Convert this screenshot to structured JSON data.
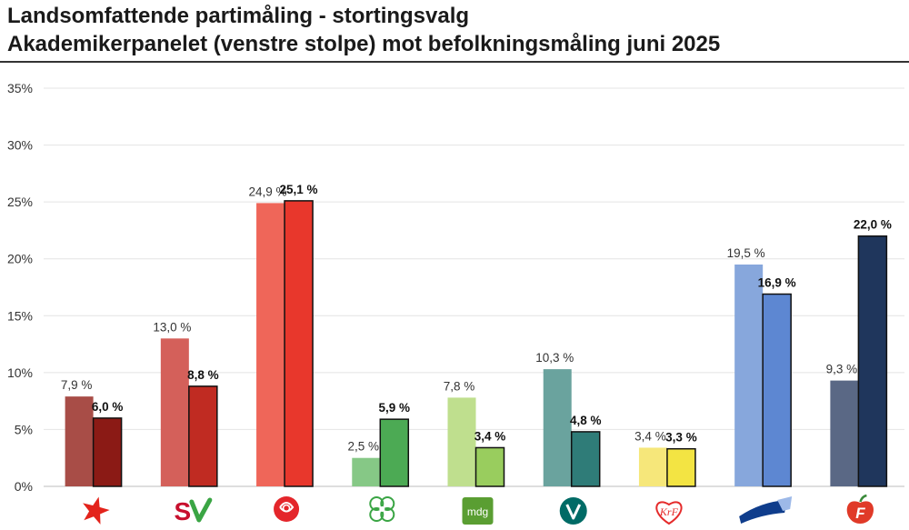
{
  "title": {
    "line1": "Landsomfattende partimåling - stortingsvalg",
    "line2": "Akademikerpanelet (venstre stolpe) mot befolkningsmåling juni 2025"
  },
  "chart_data": {
    "type": "bar",
    "ylim": [
      0,
      35
    ],
    "yticks": [
      "0%",
      "5%",
      "10%",
      "15%",
      "20%",
      "25%",
      "30%",
      "35%"
    ],
    "grid": true,
    "legend": "none",
    "categories": [
      "Rødt",
      "SV",
      "Ap",
      "Sp",
      "MDG",
      "Venstre",
      "KrF",
      "Høyre",
      "FrP"
    ],
    "series": [
      {
        "values": [
          7.9,
          13.0,
          24.9,
          2.5,
          7.8,
          10.3,
          3.4,
          19.5,
          9.3
        ],
        "labels": [
          "7,9 %",
          "13,0 %",
          "24,9 %",
          "2,5 %",
          "7,8 %",
          "10,3 %",
          "3,4 %",
          "19,5 %",
          "9,3 %"
        ],
        "colors": [
          "#a84d47",
          "#d4605a",
          "#ef6659",
          "#86c886",
          "#bfdf8e",
          "#6aa39e",
          "#f6e77a",
          "#87a7dc",
          "#5a6885"
        ]
      },
      {
        "values": [
          6.0,
          8.8,
          25.1,
          5.9,
          3.4,
          4.8,
          3.3,
          16.9,
          22.0
        ],
        "labels": [
          "6,0 %",
          "8,8 %",
          "25,1 %",
          "5,9 %",
          "3,4 %",
          "4,8 %",
          "3,3 %",
          "16,9 %",
          "22,0 %"
        ],
        "colors": [
          "#8b1a15",
          "#c02b22",
          "#e8372c",
          "#4caa54",
          "#99cd5e",
          "#2f7c78",
          "#f3e443",
          "#5d87d2",
          "#1f365c"
        ]
      }
    ],
    "logos": [
      {
        "name": "rodt-star-logo",
        "color": "#e3231b"
      },
      {
        "name": "sv-logo",
        "text": "S",
        "color": "#c8102e"
      },
      {
        "name": "ap-rose-logo",
        "color": "#e4262b"
      },
      {
        "name": "sp-clover-logo",
        "color": "#3aa544"
      },
      {
        "name": "mdg-logo",
        "text": "mdg",
        "color": "#5a9e32"
      },
      {
        "name": "venstre-logo",
        "text": "V",
        "color": "#006b66"
      },
      {
        "name": "krf-logo",
        "text": "KrF",
        "color": "#e52b2b"
      },
      {
        "name": "hoyre-logo",
        "color": "#0f3d8c"
      },
      {
        "name": "frp-logo",
        "text": "F",
        "color": "#e03a28"
      }
    ]
  }
}
